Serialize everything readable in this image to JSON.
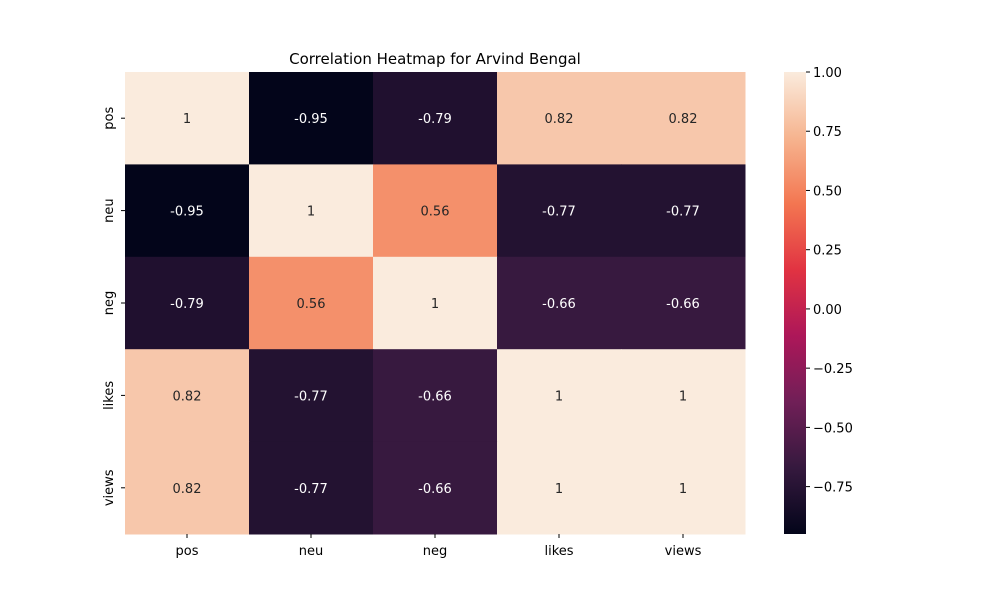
{
  "chart_data": {
    "type": "heatmap",
    "title": "Correlation Heatmap for Arvind Bengal",
    "xlabel": "",
    "ylabel": "",
    "x_categories": [
      "pos",
      "neu",
      "neg",
      "likes",
      "views"
    ],
    "y_categories": [
      "pos",
      "neu",
      "neg",
      "likes",
      "views"
    ],
    "values": [
      [
        1,
        -0.95,
        -0.79,
        0.82,
        0.82
      ],
      [
        -0.95,
        1,
        0.56,
        -0.77,
        -0.77
      ],
      [
        -0.79,
        0.56,
        1,
        -0.66,
        -0.66
      ],
      [
        0.82,
        -0.77,
        -0.66,
        1,
        1
      ],
      [
        0.82,
        -0.77,
        -0.66,
        1,
        1
      ]
    ],
    "value_labels": [
      [
        "1",
        "-0.95",
        "-0.79",
        "0.82",
        "0.82"
      ],
      [
        "-0.95",
        "1",
        "0.56",
        "-0.77",
        "-0.77"
      ],
      [
        "-0.79",
        "0.56",
        "1",
        "-0.66",
        "-0.66"
      ],
      [
        "0.82",
        "-0.77",
        "-0.66",
        "1",
        "1"
      ],
      [
        "0.82",
        "-0.77",
        "-0.66",
        "1",
        "1"
      ]
    ],
    "colorbar": {
      "vmin": -0.95,
      "vmax": 1.0,
      "ticks": [
        1.0,
        0.75,
        0.5,
        0.25,
        0.0,
        -0.25,
        -0.5,
        -0.75
      ],
      "tick_labels": [
        "1.00",
        "0.75",
        "0.50",
        "0.25",
        "0.00",
        "−0.25",
        "−0.50",
        "−0.75"
      ],
      "colormap": "rocket",
      "colormap_stops": [
        "#03051a",
        "#35193e",
        "#701f57",
        "#ad1759",
        "#e13342",
        "#f37651",
        "#f6b48f",
        "#faebdd"
      ]
    },
    "grid": false
  }
}
